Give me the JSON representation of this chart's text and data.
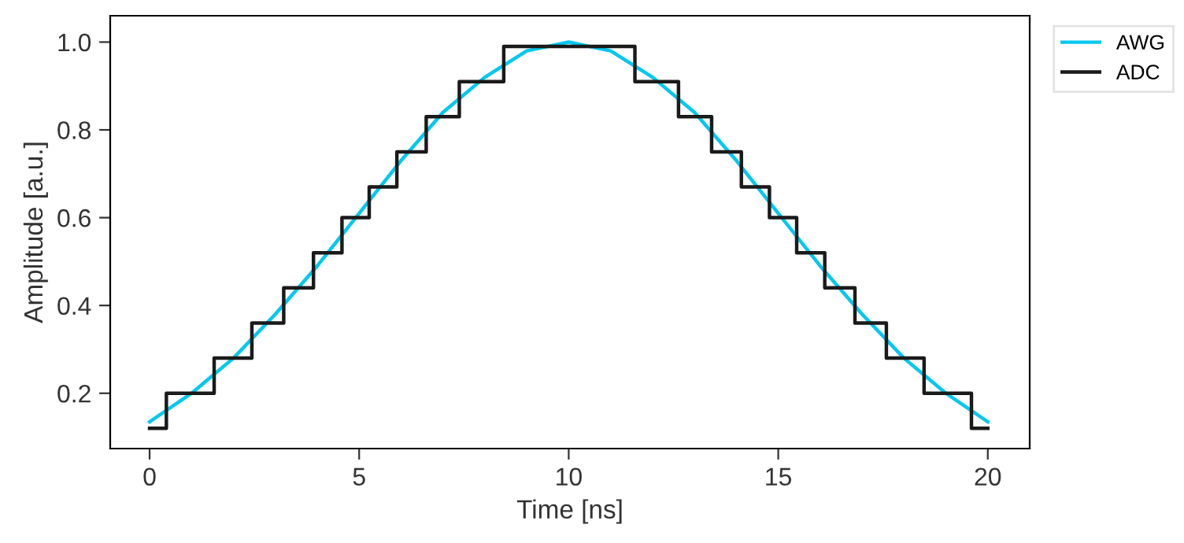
{
  "chart_data": {
    "type": "line",
    "xlabel": "Time [ns]",
    "ylabel": "Amplitude [a.u.]",
    "xlim": [
      -0.94,
      21.0
    ],
    "ylim": [
      0.074,
      1.06
    ],
    "xticks": [
      0,
      5,
      10,
      15,
      20
    ],
    "yticks": [
      0.2,
      0.4,
      0.6,
      0.8,
      {
        "value": 1.0,
        "label": "1.0"
      }
    ],
    "legend": "top right",
    "grid": false,
    "marker": "none",
    "line_style": "solid",
    "series": [
      {
        "name": "AWG",
        "color": "#00c8ef",
        "x": [
          0,
          1,
          2,
          3,
          4,
          5,
          6,
          7,
          8,
          9,
          10,
          11,
          12,
          13,
          14,
          15,
          16,
          17,
          18,
          19,
          20
        ],
        "values": [
          0.135,
          0.2,
          0.28,
          0.38,
          0.49,
          0.61,
          0.73,
          0.84,
          0.92,
          0.98,
          1.0,
          0.98,
          0.92,
          0.84,
          0.73,
          0.61,
          0.49,
          0.38,
          0.28,
          0.2,
          0.135
        ]
      },
      {
        "name": "ADC",
        "type": "step",
        "color": "#1a1a1a",
        "x": [
          0,
          0.4,
          1.54,
          2.44,
          3.2,
          3.91,
          4.59,
          5.24,
          5.9,
          6.6,
          7.39,
          8.45,
          11.58,
          12.62,
          13.41,
          14.12,
          14.79,
          15.44,
          16.11,
          16.83,
          17.58,
          18.48,
          19.61,
          20
        ],
        "values": [
          0.12,
          0.2,
          0.28,
          0.36,
          0.44,
          0.52,
          0.6,
          0.67,
          0.75,
          0.83,
          0.91,
          0.99,
          0.91,
          0.83,
          0.75,
          0.67,
          0.6,
          0.52,
          0.44,
          0.36,
          0.28,
          0.2,
          0.12,
          0.12
        ]
      }
    ]
  }
}
